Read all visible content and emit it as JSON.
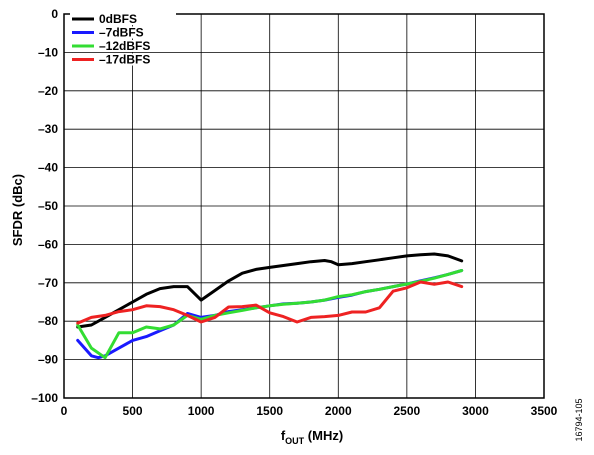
{
  "chart_data": {
    "type": "line",
    "xlabel": {
      "main": "f",
      "sub": "OUT",
      "rest": " (MHz)"
    },
    "ylabel": "SFDR (dBc)",
    "xlim": [
      0,
      3500
    ],
    "ylim": [
      -100,
      0
    ],
    "xticks": [
      0,
      500,
      1000,
      1500,
      2000,
      2500,
      3000,
      3500
    ],
    "yticks": [
      0,
      -10,
      -20,
      -30,
      -40,
      -50,
      -60,
      -70,
      -80,
      -90,
      -100
    ],
    "xtick_labels": [
      "0",
      "500",
      "1000",
      "1500",
      "2000",
      "2500",
      "3000",
      "3500"
    ],
    "ytick_labels": [
      "0",
      "–10",
      "–20",
      "–30",
      "–40",
      "–50",
      "–60",
      "–70",
      "–80",
      "–90",
      "–100"
    ],
    "grid": true,
    "legend_position": "top-left",
    "figure_id": "16794-105",
    "series": [
      {
        "name": "0dBFS",
        "color": "#000000",
        "x": [
          100,
          200,
          300,
          400,
          500,
          600,
          700,
          800,
          900,
          1000,
          1100,
          1200,
          1300,
          1400,
          1500,
          1600,
          1700,
          1800,
          1900,
          1950,
          2000,
          2100,
          2200,
          2300,
          2400,
          2500,
          2600,
          2700,
          2800,
          2900
        ],
        "y": [
          -81.5,
          -81,
          -79,
          -77,
          -75,
          -73,
          -71.5,
          -71,
          -71,
          -74.5,
          -72,
          -69.5,
          -67.5,
          -66.5,
          -66,
          -65.5,
          -65,
          -64.5,
          -64.2,
          -64.5,
          -65.3,
          -65,
          -64.5,
          -64,
          -63.5,
          -63,
          -62.7,
          -62.5,
          -63,
          -64.3
        ]
      },
      {
        "name": "–7dBFS",
        "color": "#1a1aff",
        "x": [
          100,
          200,
          250,
          300,
          400,
          500,
          600,
          700,
          800,
          900,
          1000,
          1100,
          1200,
          1300,
          1400,
          1500,
          1600,
          1700,
          1800,
          1900,
          2000,
          2100,
          2200,
          2300,
          2400,
          2500,
          2600,
          2700,
          2800,
          2900
        ],
        "y": [
          -85,
          -89,
          -89.5,
          -89,
          -87,
          -85,
          -84,
          -82.5,
          -81,
          -78,
          -79,
          -78.5,
          -77.5,
          -77,
          -76.5,
          -76,
          -75.5,
          -75.3,
          -75,
          -74.5,
          -73.8,
          -73.2,
          -72.3,
          -71.7,
          -71,
          -70.3,
          -69.5,
          -68.7,
          -67.8,
          -66.8
        ]
      },
      {
        "name": "–12dBFS",
        "color": "#33dd33",
        "x": [
          100,
          200,
          300,
          400,
          500,
          600,
          700,
          800,
          900,
          1000,
          1100,
          1200,
          1300,
          1400,
          1500,
          1600,
          1700,
          1800,
          1900,
          2000,
          2100,
          2200,
          2300,
          2400,
          2500,
          2600,
          2700,
          2800,
          2900
        ],
        "y": [
          -81,
          -87,
          -89.5,
          -83,
          -83,
          -81.5,
          -82,
          -81,
          -78.5,
          -79.5,
          -78.5,
          -77.8,
          -77.2,
          -76.5,
          -76,
          -75.6,
          -75.3,
          -75,
          -74.5,
          -73.6,
          -73.1,
          -72.3,
          -71.7,
          -71,
          -70.3,
          -69.6,
          -68.8,
          -67.8,
          -66.8
        ]
      },
      {
        "name": "–17dBFS",
        "color": "#ee2222",
        "x": [
          100,
          200,
          300,
          400,
          500,
          600,
          700,
          800,
          900,
          1000,
          1100,
          1200,
          1300,
          1400,
          1500,
          1600,
          1700,
          1800,
          1900,
          2000,
          2100,
          2200,
          2300,
          2400,
          2500,
          2600,
          2700,
          2800,
          2900
        ],
        "y": [
          -80.5,
          -79,
          -78.5,
          -77.5,
          -77,
          -76,
          -76.2,
          -77,
          -78.5,
          -80.2,
          -79,
          -76.3,
          -76.2,
          -75.8,
          -77.8,
          -78.8,
          -80.2,
          -79,
          -78.8,
          -78.5,
          -77.6,
          -77.6,
          -76.5,
          -72.2,
          -71.3,
          -69.8,
          -70.4,
          -69.8,
          -71
        ]
      }
    ]
  }
}
